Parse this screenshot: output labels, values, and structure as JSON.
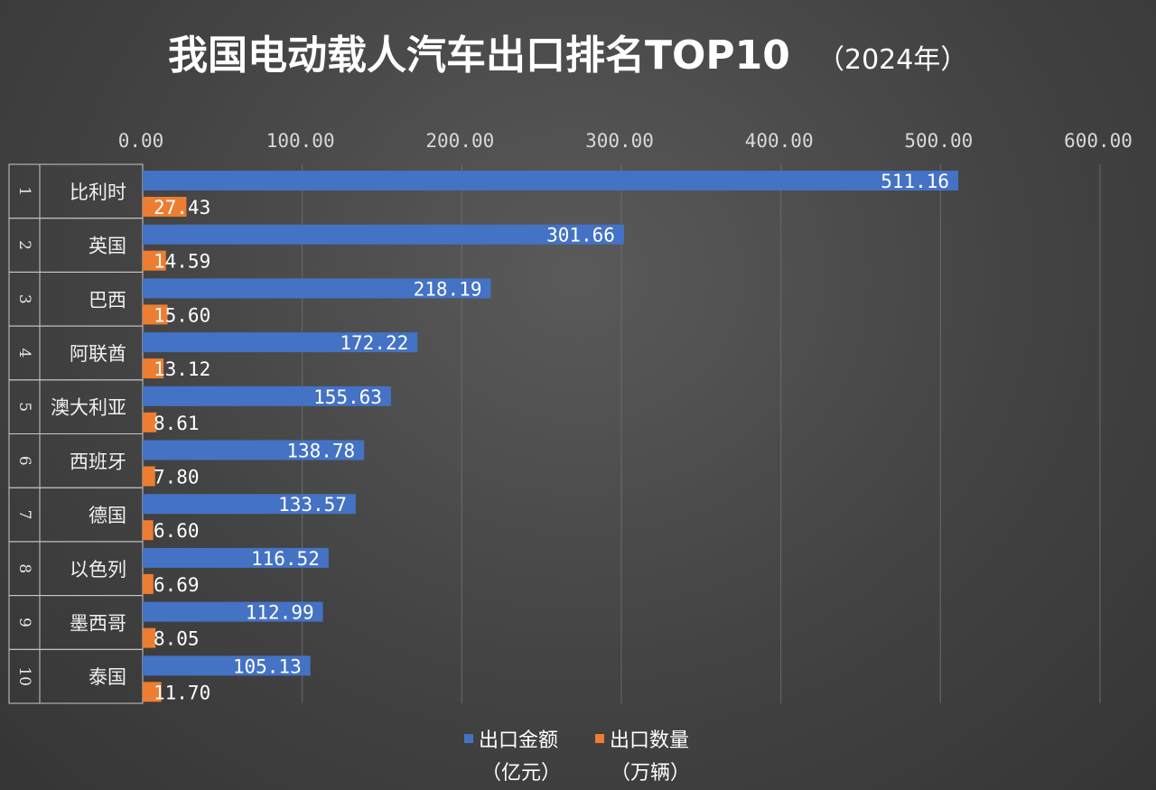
{
  "chart_data": {
    "type": "bar",
    "orientation": "horizontal",
    "title": "我国电动载人汽车出口排名TOP10",
    "subtitle": "（2024年）",
    "ranks": [
      "1",
      "2",
      "3",
      "4",
      "5",
      "6",
      "7",
      "8",
      "9",
      "10"
    ],
    "categories": [
      "比利时",
      "英国",
      "巴西",
      "阿联酋",
      "澳大利亚",
      "西班牙",
      "德国",
      "以色列",
      "墨西哥",
      "泰国"
    ],
    "series": [
      {
        "name": "出口金额",
        "unit": "（亿元）",
        "color": "#4472c4",
        "values": [
          511.16,
          301.66,
          218.19,
          172.22,
          155.63,
          138.78,
          133.57,
          116.52,
          112.99,
          105.13
        ],
        "labels": [
          "511.16",
          "301.66",
          "218.19",
          "172.22",
          "155.63",
          "138.78",
          "133.57",
          "116.52",
          "112.99",
          "105.13"
        ]
      },
      {
        "name": "出口数量",
        "unit": "（万辆）",
        "color": "#ed7d31",
        "values": [
          27.43,
          14.59,
          15.6,
          13.12,
          8.61,
          7.8,
          6.6,
          6.69,
          8.05,
          11.7
        ],
        "labels": [
          "27.43",
          "14.59",
          "15.60",
          "13.12",
          "8.61",
          "7.80",
          "6.60",
          "6.69",
          "8.05",
          "11.70"
        ]
      }
    ],
    "xlim": [
      0,
      600
    ],
    "xticks": [
      0,
      100,
      200,
      300,
      400,
      500,
      600
    ],
    "xtick_labels": [
      "0.00",
      "100.00",
      "200.00",
      "300.00",
      "400.00",
      "500.00",
      "600.00"
    ],
    "grid": true,
    "legend_position": "bottom",
    "axis_position": "top"
  }
}
